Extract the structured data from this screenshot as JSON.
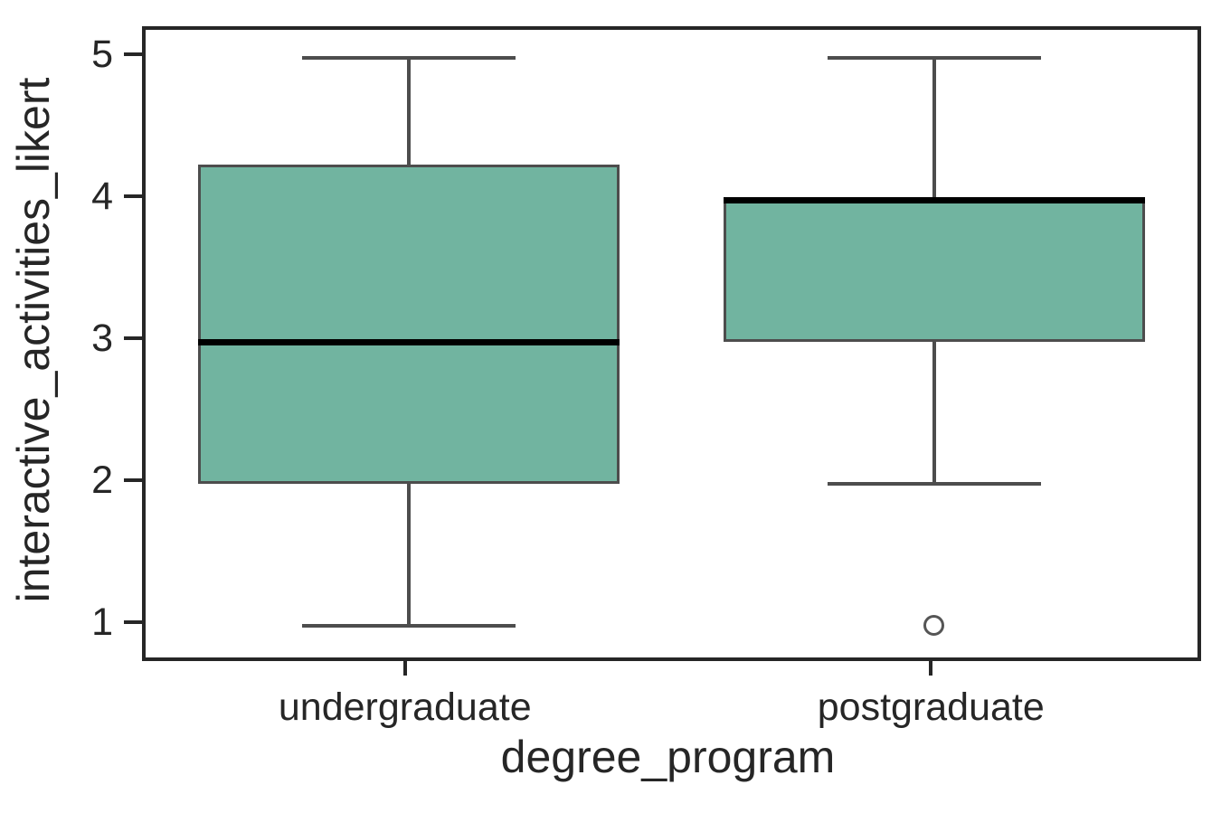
{
  "chart_data": {
    "type": "box",
    "title": "",
    "xlabel": "degree_program",
    "ylabel": "interactive_activities_likert",
    "categories": [
      "undergraduate",
      "postgraduate"
    ],
    "yticks": [
      1,
      2,
      3,
      4,
      5
    ],
    "ylim": [
      0.78,
      5.2
    ],
    "grid": false,
    "legend": null,
    "colors": {
      "box_fill": "#71b4a0",
      "box_edge": "#4d4d4d",
      "whisker": "#4d4d4d",
      "median": "#000000",
      "outlier_edge": "#555555",
      "spine": "#262626",
      "text": "#262626"
    },
    "series": [
      {
        "category": "undergraduate",
        "whisker_low": 1,
        "q1": 2,
        "median": 3,
        "q3": 4.25,
        "whisker_high": 5,
        "outliers": []
      },
      {
        "category": "postgraduate",
        "whisker_low": 2,
        "q1": 3,
        "median": 4,
        "q3": 4,
        "whisker_high": 5,
        "outliers": [
          1
        ]
      }
    ]
  }
}
